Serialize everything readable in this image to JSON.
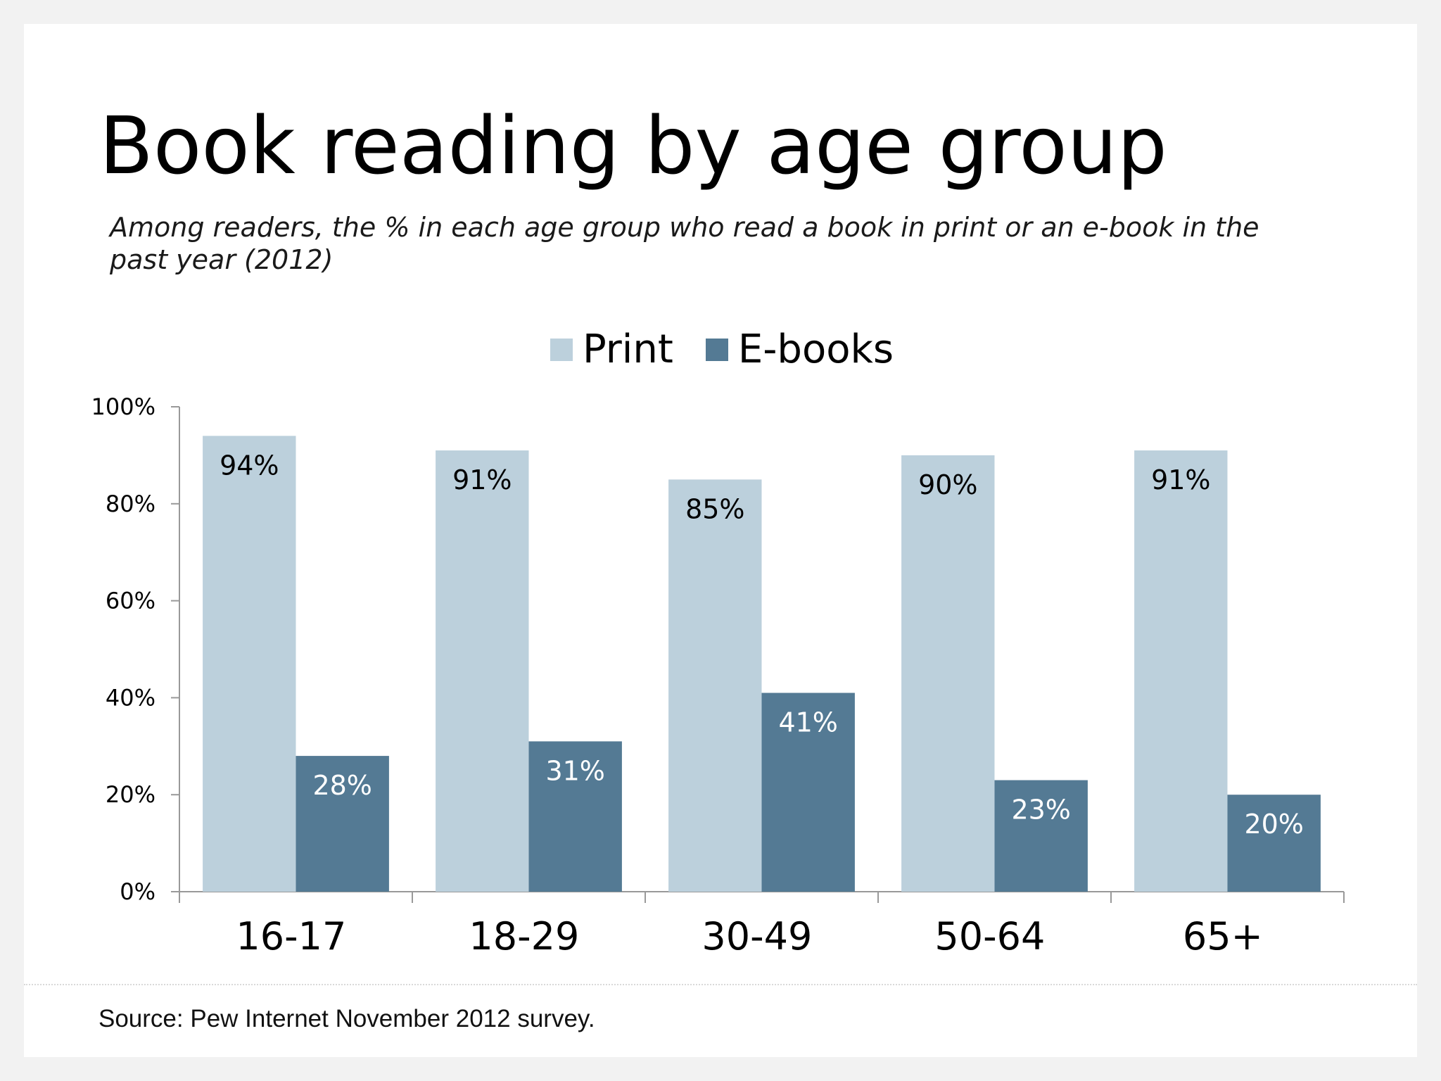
{
  "chart_data": {
    "type": "bar",
    "title": "Book reading by age group",
    "subtitle": "Among readers, the % in each age group who read a book in print or an e-book in the past year (2012)",
    "categories": [
      "16-17",
      "18-29",
      "30-49",
      "50-64",
      "65+"
    ],
    "series": [
      {
        "name": "Print",
        "values": [
          94,
          91,
          85,
          90,
          91
        ],
        "color": "#bcd0dc",
        "label_color": "#000000"
      },
      {
        "name": "E-books",
        "values": [
          28,
          31,
          41,
          23,
          20
        ],
        "color": "#547a94",
        "label_color": "#ffffff"
      }
    ],
    "ylim": [
      0,
      100
    ],
    "yticks": [
      0,
      20,
      40,
      60,
      80,
      100
    ],
    "ytick_labels": [
      "0%",
      "20%",
      "40%",
      "60%",
      "80%",
      "100%"
    ],
    "value_suffix": "%",
    "xlabel": "",
    "ylabel": "",
    "grid": false,
    "legend_position": "top-center"
  },
  "source": "Source: Pew Internet November 2012 survey.",
  "colors": {
    "print": "#bcd0dc",
    "ebooks": "#547a94",
    "axis": "#999999"
  }
}
